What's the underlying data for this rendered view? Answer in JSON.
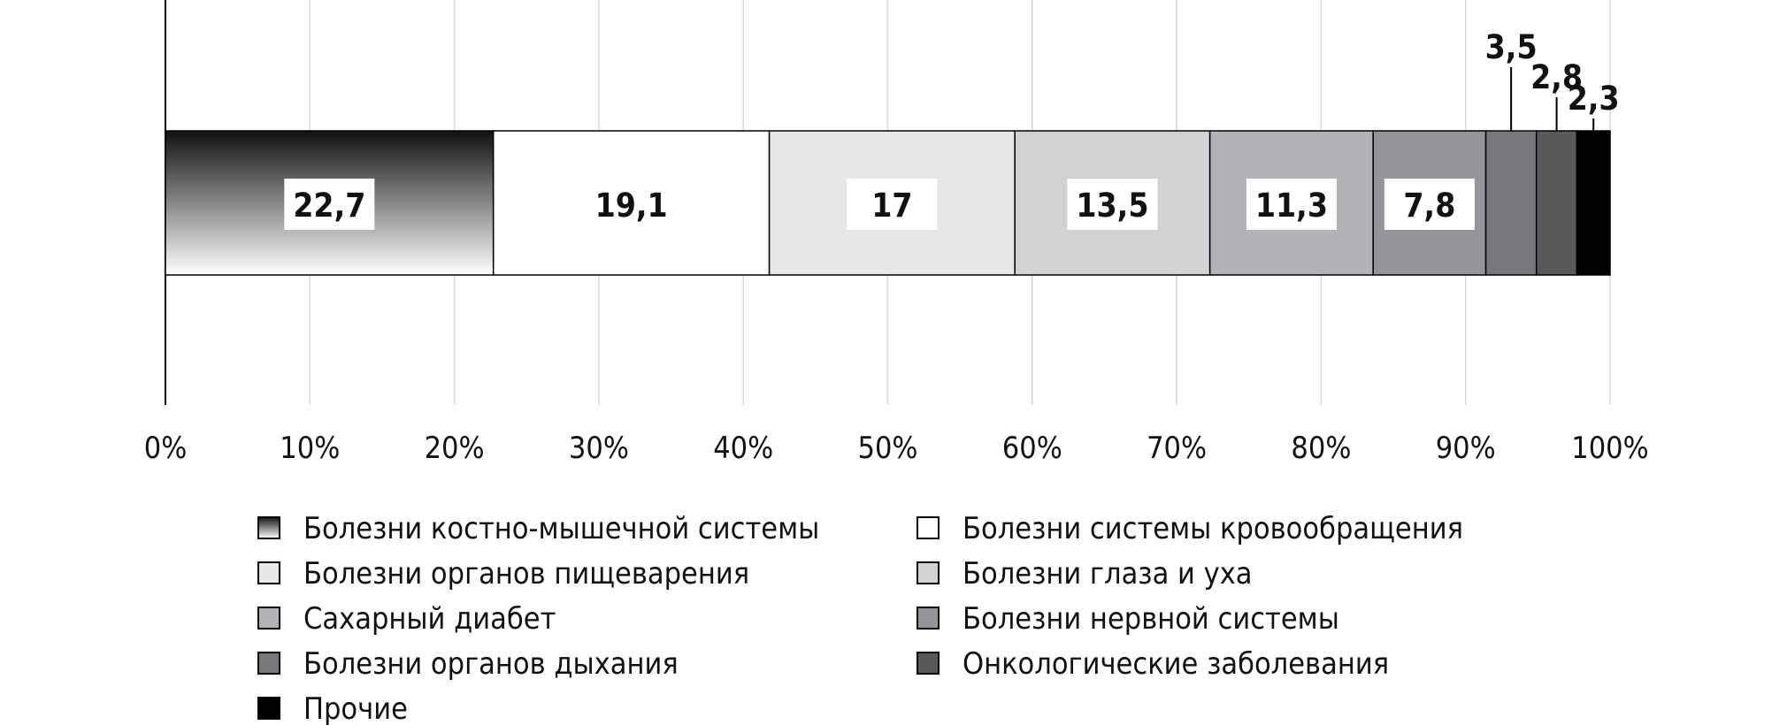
{
  "chart_data": {
    "type": "bar",
    "orientation": "horizontal",
    "stacked": true,
    "xlim": [
      0,
      100
    ],
    "x_ticks": [
      0,
      10,
      20,
      30,
      40,
      50,
      60,
      70,
      80,
      90,
      100
    ],
    "x_tick_labels": [
      "0%",
      "10%",
      "20%",
      "30%",
      "40%",
      "50%",
      "60%",
      "70%",
      "80%",
      "90%",
      "100%"
    ],
    "grid": true,
    "legend_position": "bottom",
    "series": [
      {
        "name": "Болезни костно-мышечной системы",
        "value": 22.7,
        "label": "22,7",
        "color": "#555555",
        "gradient": [
          "#111111",
          "#ffffff"
        ]
      },
      {
        "name": "Болезни системы кровообращения",
        "value": 19.1,
        "label": "19,1",
        "color": "#ffffff"
      },
      {
        "name": "Болезни органов пищеварения",
        "value": 17,
        "label": "17",
        "color": "#e6e7e8"
      },
      {
        "name": "Болезни глаза и уха",
        "value": 13.5,
        "label": "13,5",
        "color": "#d1d2d4"
      },
      {
        "name": "Сахарный диабет",
        "value": 11.3,
        "label": "11,3",
        "color": "#b1b3b6"
      },
      {
        "name": "Болезни нервной системы",
        "value": 7.8,
        "label": "7,8",
        "color": "#939598"
      },
      {
        "name": "Болезни органов дыхания",
        "value": 3.5,
        "label": "3,5",
        "color": "#77787b"
      },
      {
        "name": "Онкологические заболевания",
        "value": 2.8,
        "label": "2,8",
        "color": "#58595b"
      },
      {
        "name": "Прочие",
        "value": 2.3,
        "label": "2,3",
        "color": "#000000"
      }
    ]
  }
}
